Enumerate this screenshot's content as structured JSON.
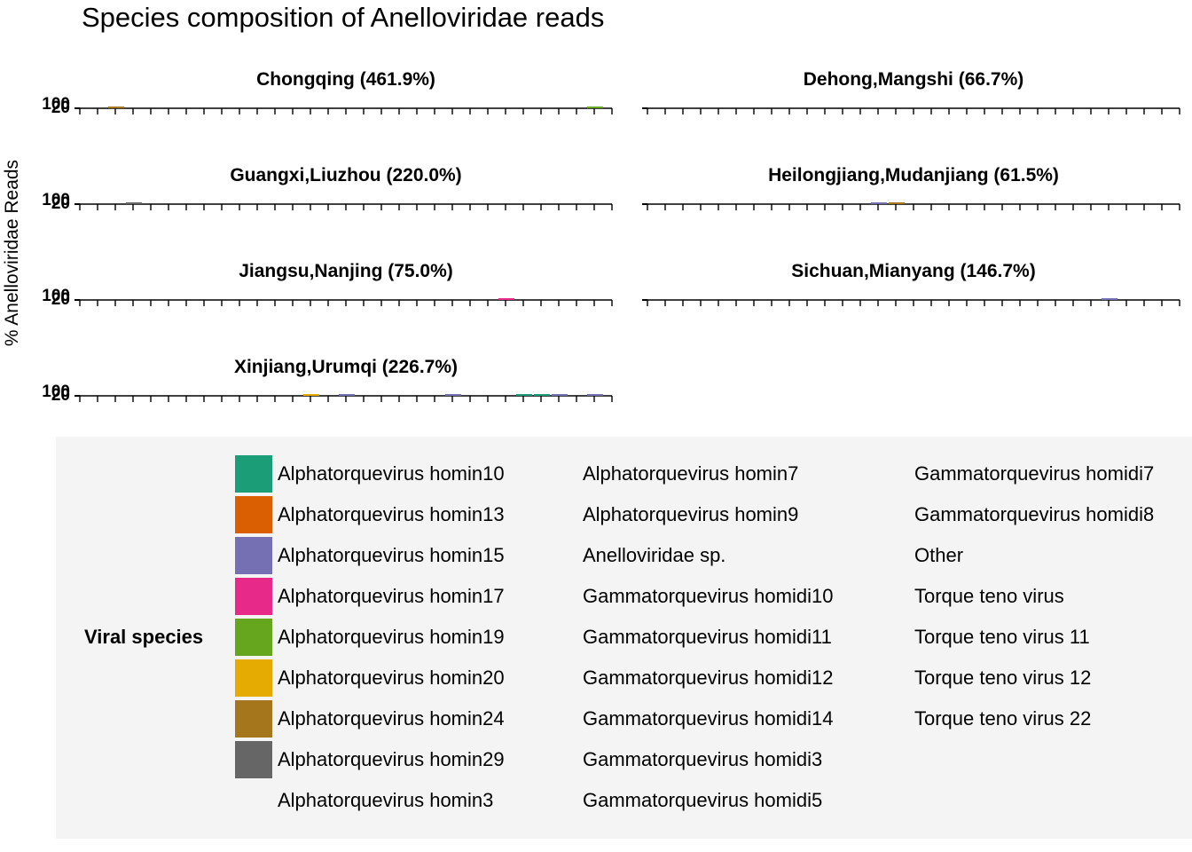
{
  "chart_data": {
    "type": "bar",
    "title": "Species composition of Anelloviridae reads",
    "ylabel": "% Anelloviridae Reads",
    "ytick_labels": [
      "100",
      "20"
    ],
    "legend_title": "Viral species",
    "legend_placement": "bottom",
    "panels": [
      {
        "id": "chongqing",
        "label": "Chongqing (461.9%)",
        "n_samples": 31,
        "bars": [
          {
            "index": 2,
            "species": "Alphatorquevirus homin24"
          },
          {
            "index": 29,
            "species": "Alphatorquevirus homin19"
          }
        ]
      },
      {
        "id": "dehong",
        "label": "Dehong,Mangshi (66.7%)",
        "n_samples": 31,
        "bars": []
      },
      {
        "id": "guangxi",
        "label": "Guangxi,Liuzhou (220.0%)",
        "n_samples": 31,
        "bars": [
          {
            "index": 3,
            "species": "Alphatorquevirus homin29"
          }
        ]
      },
      {
        "id": "heilongjiang",
        "label": "Heilongjiang,Mudanjiang (61.5%)",
        "n_samples": 31,
        "bars": [
          {
            "index": 13,
            "species": "Alphatorquevirus homin15"
          },
          {
            "index": 14,
            "species": "Alphatorquevirus homin24"
          }
        ]
      },
      {
        "id": "jiangsu",
        "label": "Jiangsu,Nanjing (75.0%)",
        "n_samples": 31,
        "bars": [
          {
            "index": 24,
            "species": "Alphatorquevirus homin17"
          }
        ]
      },
      {
        "id": "sichuan",
        "label": "Sichuan,Mianyang (146.7%)",
        "n_samples": 31,
        "bars": [
          {
            "index": 26,
            "species": "Alphatorquevirus homin15"
          }
        ]
      },
      {
        "id": "xinjiang",
        "label": "Xinjiang,Urumqi (226.7%)",
        "n_samples": 31,
        "bars": [
          {
            "index": 13,
            "species": "Alphatorquevirus homin20"
          },
          {
            "index": 15,
            "species": "Alphatorquevirus homin15"
          },
          {
            "index": 21,
            "species": "Alphatorquevirus homin15"
          },
          {
            "index": 25,
            "species": "Alphatorquevirus homin10"
          },
          {
            "index": 26,
            "species": "Alphatorquevirus homin10"
          },
          {
            "index": 27,
            "species": "Alphatorquevirus homin15"
          },
          {
            "index": 29,
            "species": "Alphatorquevirus homin15"
          }
        ]
      }
    ],
    "legend": [
      {
        "label": "Alphatorquevirus homin10",
        "color": "#1b9e77"
      },
      {
        "label": "Alphatorquevirus homin13",
        "color": "#d95f02"
      },
      {
        "label": "Alphatorquevirus homin15",
        "color": "#7570b3"
      },
      {
        "label": "Alphatorquevirus homin17",
        "color": "#e7298a"
      },
      {
        "label": "Alphatorquevirus homin19",
        "color": "#66a61e"
      },
      {
        "label": "Alphatorquevirus homin20",
        "color": "#e6ab02"
      },
      {
        "label": "Alphatorquevirus homin24",
        "color": "#a6761d"
      },
      {
        "label": "Alphatorquevirus homin29",
        "color": "#666666"
      },
      {
        "label": "Alphatorquevirus homin3",
        "color": ""
      },
      {
        "label": "Alphatorquevirus homin7",
        "color": ""
      },
      {
        "label": "Alphatorquevirus homin9",
        "color": ""
      },
      {
        "label": "Anelloviridae sp.",
        "color": ""
      },
      {
        "label": "Gammatorquevirus homidi10",
        "color": ""
      },
      {
        "label": "Gammatorquevirus homidi11",
        "color": ""
      },
      {
        "label": "Gammatorquevirus homidi12",
        "color": ""
      },
      {
        "label": "Gammatorquevirus homidi14",
        "color": ""
      },
      {
        "label": "Gammatorquevirus homidi3",
        "color": ""
      },
      {
        "label": "Gammatorquevirus homidi5",
        "color": ""
      },
      {
        "label": "Gammatorquevirus homidi7",
        "color": ""
      },
      {
        "label": "Gammatorquevirus homidi8",
        "color": ""
      },
      {
        "label": "Other",
        "color": ""
      },
      {
        "label": "Torque teno virus",
        "color": ""
      },
      {
        "label": "Torque teno virus 11",
        "color": ""
      },
      {
        "label": "Torque teno virus 12",
        "color": ""
      },
      {
        "label": "Torque teno virus 22",
        "color": ""
      }
    ]
  }
}
